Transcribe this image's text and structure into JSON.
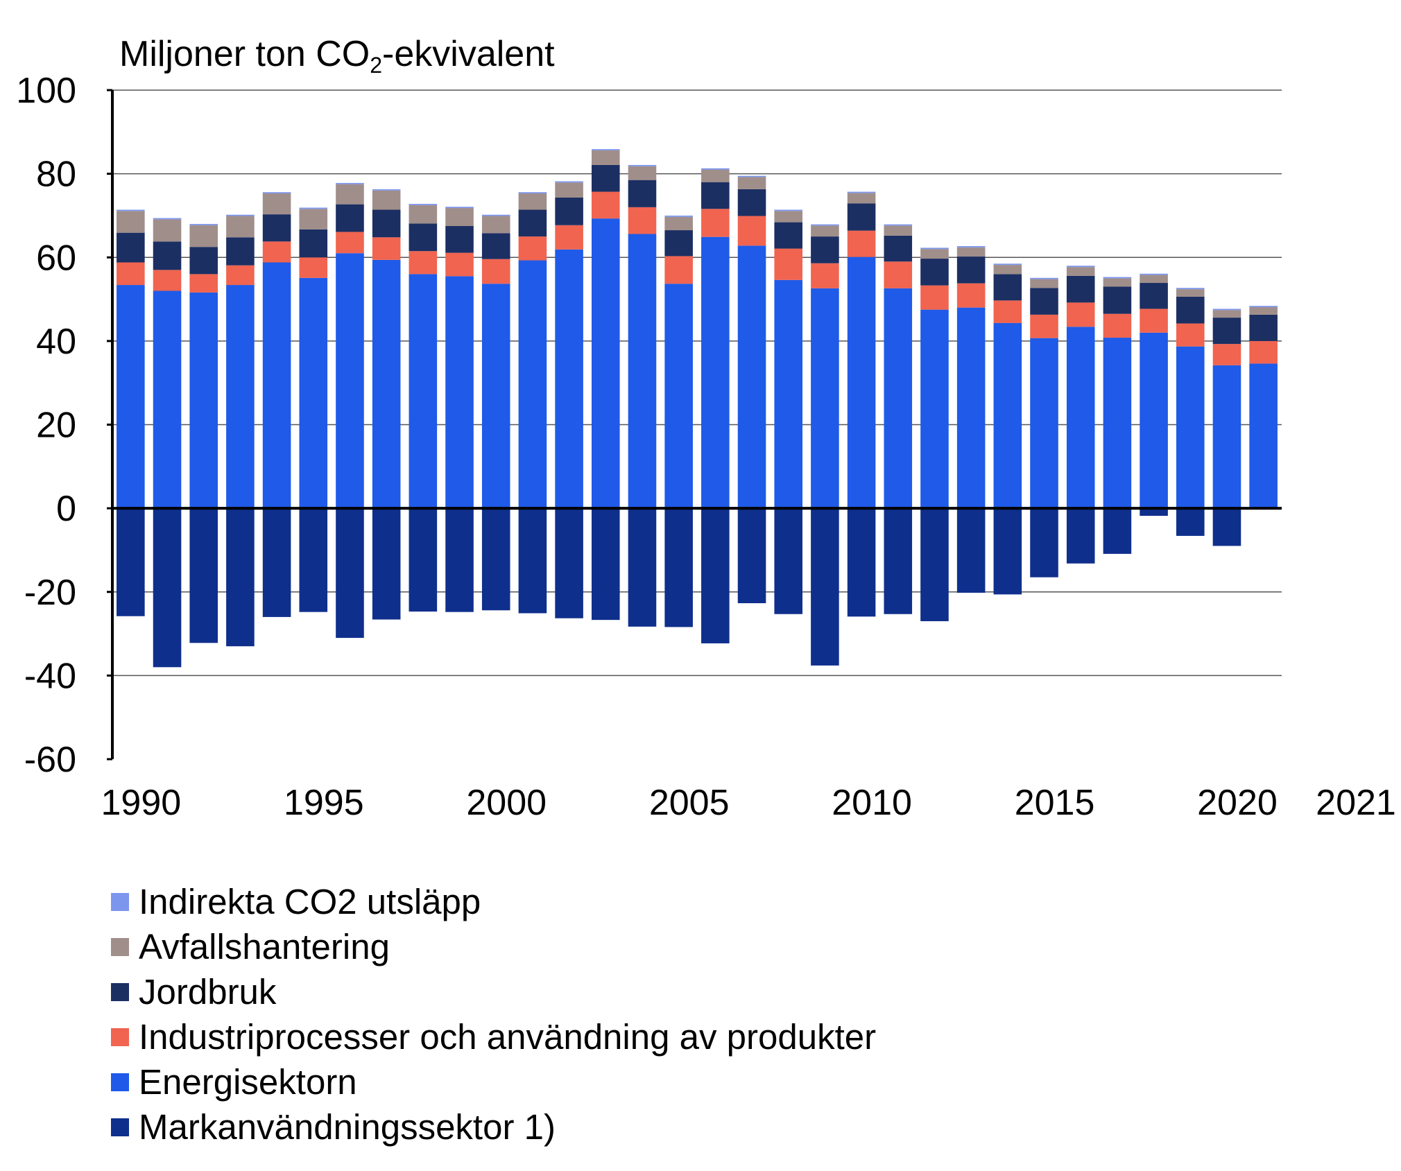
{
  "chart_data": {
    "type": "bar",
    "stacked": true,
    "ylabel_prefix": "Miljoner ton CO",
    "ylabel_sub": "2",
    "ylabel_suffix": "-ekvivalent",
    "ylim": [
      -60,
      100
    ],
    "yticks": [
      100,
      80,
      60,
      40,
      20,
      0,
      -20,
      -40,
      -60
    ],
    "xtick_labels": [
      "1990",
      "1995",
      "2000",
      "2005",
      "2010",
      "2015",
      "2020",
      "2021"
    ],
    "grid": true,
    "categories": [
      1990,
      1991,
      1992,
      1993,
      1994,
      1995,
      1996,
      1997,
      1998,
      1999,
      2000,
      2001,
      2002,
      2003,
      2004,
      2005,
      2006,
      2007,
      2008,
      2009,
      2010,
      2011,
      2012,
      2013,
      2014,
      2015,
      2016,
      2017,
      2018,
      2019,
      2020,
      2021
    ],
    "series": [
      {
        "key": "energi",
        "name": "Energisektorn",
        "color": "#1f5ae8",
        "values": [
          53.4,
          52.0,
          51.6,
          53.4,
          58.8,
          55.1,
          61.0,
          59.4,
          56.0,
          55.5,
          53.7,
          59.3,
          61.9,
          69.3,
          65.6,
          53.7,
          64.9,
          62.8,
          54.6,
          52.6,
          60.1,
          52.6,
          47.5,
          48.0,
          44.3,
          40.7,
          43.4,
          40.8,
          42.0,
          38.7,
          34.2,
          34.6
        ]
      },
      {
        "key": "industri",
        "name": "Industriprocesser och användning av produkter",
        "color": "#f06450",
        "values": [
          5.4,
          5.0,
          4.4,
          4.7,
          5.0,
          4.9,
          5.1,
          5.4,
          5.5,
          5.6,
          5.9,
          5.7,
          5.8,
          6.4,
          6.4,
          6.6,
          6.7,
          7.1,
          7.5,
          6.0,
          6.3,
          6.4,
          5.8,
          5.8,
          5.4,
          5.6,
          5.8,
          5.7,
          5.7,
          5.5,
          5.1,
          5.4
        ]
      },
      {
        "key": "jordbruk",
        "name": "Jordbruk",
        "color": "#1c2f63",
        "values": [
          7.1,
          6.8,
          6.5,
          6.7,
          6.5,
          6.7,
          6.6,
          6.6,
          6.6,
          6.4,
          6.2,
          6.4,
          6.6,
          6.4,
          6.5,
          6.2,
          6.4,
          6.4,
          6.3,
          6.4,
          6.5,
          6.2,
          6.4,
          6.4,
          6.3,
          6.4,
          6.4,
          6.5,
          6.2,
          6.4,
          6.3,
          6.3
        ]
      },
      {
        "key": "avfall",
        "name": "Avfallshantering",
        "color": "#a08e8a",
        "values": [
          5.2,
          5.3,
          5.2,
          5.1,
          5.0,
          4.9,
          4.8,
          4.6,
          4.4,
          4.3,
          4.1,
          3.9,
          3.6,
          3.5,
          3.3,
          3.2,
          3.0,
          2.9,
          2.7,
          2.6,
          2.5,
          2.4,
          2.3,
          2.2,
          2.2,
          2.1,
          2.1,
          2.0,
          1.9,
          1.8,
          1.8,
          1.8
        ]
      },
      {
        "key": "indirekta",
        "name": "Indirekta CO2 utsläpp",
        "color": "#7c96ee",
        "values": [
          0.3,
          0.3,
          0.3,
          0.3,
          0.3,
          0.3,
          0.3,
          0.3,
          0.3,
          0.3,
          0.3,
          0.3,
          0.3,
          0.3,
          0.3,
          0.3,
          0.3,
          0.3,
          0.3,
          0.3,
          0.3,
          0.3,
          0.3,
          0.3,
          0.3,
          0.3,
          0.3,
          0.3,
          0.3,
          0.3,
          0.3,
          0.3
        ]
      },
      {
        "key": "mark",
        "name": "Markanvändningssektor 1)",
        "color": "#0f2f8c",
        "values": [
          -25.8,
          -38.0,
          -32.2,
          -33.0,
          -26.0,
          -24.8,
          -31.0,
          -26.6,
          -24.7,
          -24.8,
          -24.4,
          -25.1,
          -26.3,
          -26.7,
          -28.3,
          -28.4,
          -32.3,
          -22.7,
          -25.3,
          -37.6,
          -25.9,
          -25.3,
          -27.0,
          -20.2,
          -20.6,
          -16.5,
          -13.2,
          -10.9,
          -1.8,
          -6.6,
          -9.0,
          0
        ]
      }
    ],
    "legend_order": [
      "indirekta",
      "avfall",
      "jordbruk",
      "industri",
      "energi",
      "mark"
    ]
  }
}
